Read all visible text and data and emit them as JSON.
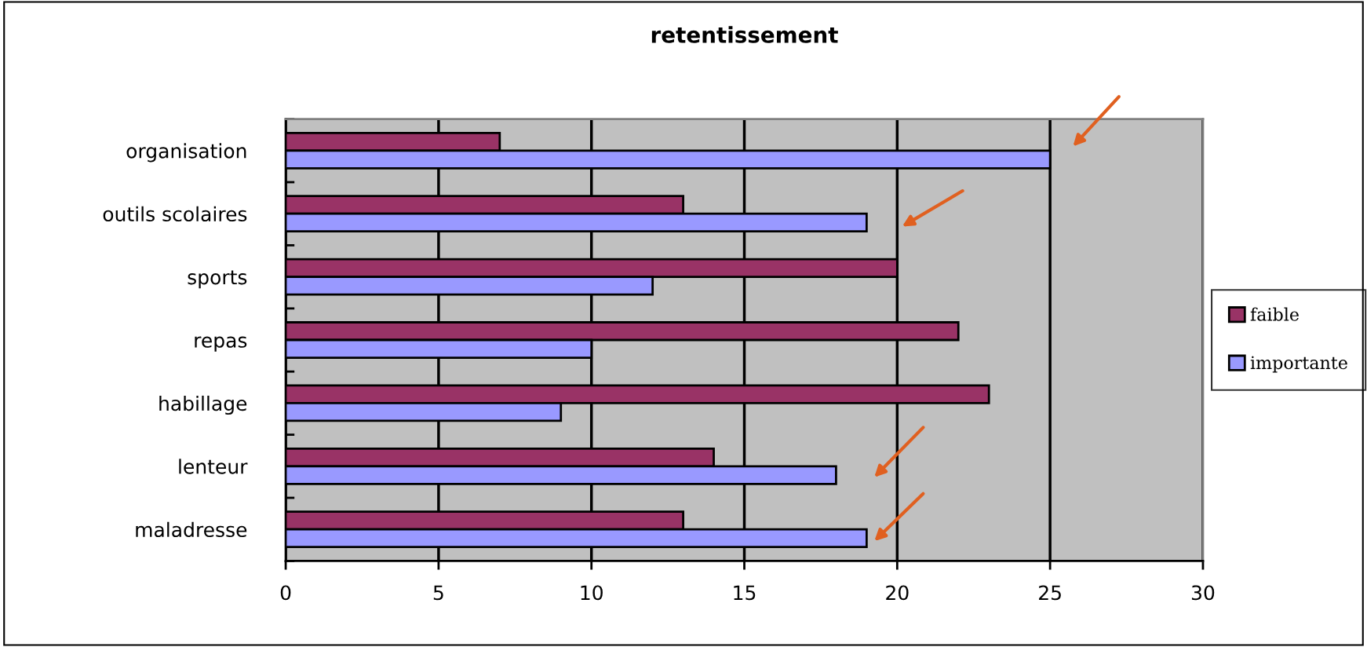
{
  "chart_data": {
    "type": "bar",
    "orientation": "horizontal",
    "title": "retentissement",
    "categories": [
      "organisation",
      "outils scolaires",
      "sports",
      "repas",
      "habillage",
      "lenteur",
      "maladresse"
    ],
    "series": [
      {
        "name": "faible",
        "color": "#993366",
        "values": [
          7,
          13,
          20,
          22,
          23,
          14,
          13
        ]
      },
      {
        "name": "importante",
        "color": "#9999ff",
        "values": [
          25,
          19,
          12,
          10,
          9,
          18,
          19
        ]
      }
    ],
    "xlim": [
      0,
      30
    ],
    "xticks": [
      0,
      5,
      10,
      15,
      20,
      25,
      30
    ],
    "grid": "x",
    "legend": "right"
  }
}
